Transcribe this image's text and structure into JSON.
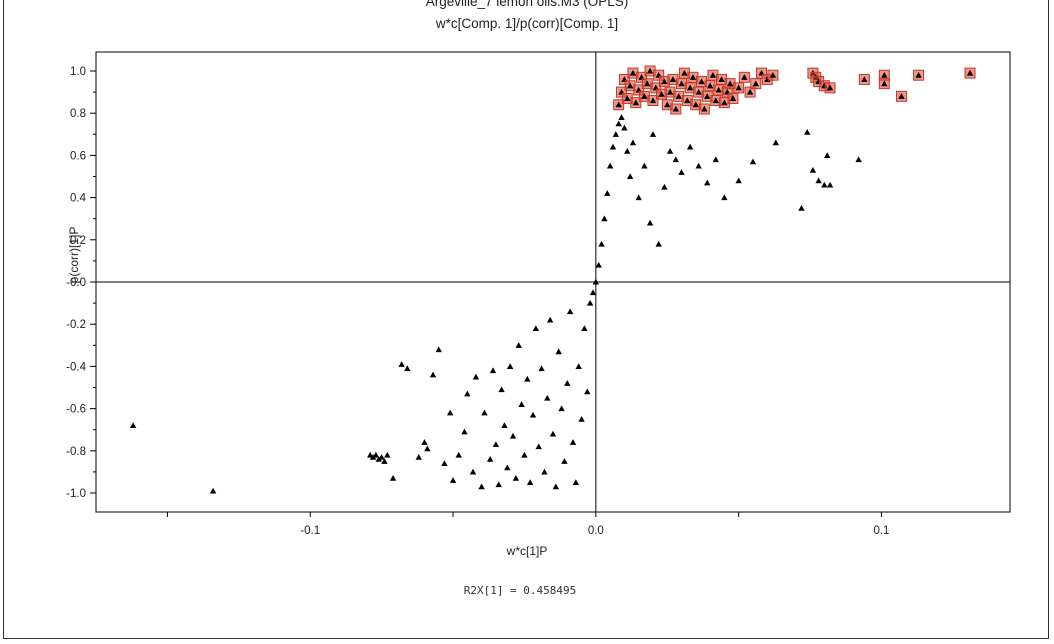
{
  "chart_data": {
    "type": "scatter",
    "title": "Argeville_7 lemon oils.M3 (OPLS)",
    "subtitle": "w*c[Comp. 1]/p(corr)[Comp. 1]",
    "xlabel": "w*c[1]P",
    "ylabel": "p(corr)[1]P",
    "xlim": [
      -0.175,
      0.145
    ],
    "ylim": [
      -1.09,
      1.09
    ],
    "x_ticks": [
      -0.1,
      0.0,
      0.1
    ],
    "x_tick_labels": [
      "-0.1",
      "0.0",
      "0.1"
    ],
    "y_ticks": [
      -1.0,
      -0.8,
      -0.6,
      -0.4,
      -0.2,
      0.0,
      0.2,
      0.4,
      0.6,
      0.8,
      1.0
    ],
    "y_tick_labels": [
      "-1.0",
      "-0.8",
      "-0.6",
      "-0.4",
      "-0.2",
      "-0.0",
      "0.2",
      "0.4",
      "0.6",
      "0.8",
      "1.0"
    ],
    "grid": true,
    "colors": {
      "points": "#000000",
      "highlight": "#e04428",
      "highlight_box": "#c0392b",
      "grid": "#e4e4e4"
    },
    "series": [
      {
        "marker": "triangle",
        "color": "#000000",
        "points": [
          [
            -0.162,
            -0.68
          ],
          [
            -0.134,
            -0.99
          ],
          [
            -0.079,
            -0.82
          ],
          [
            -0.078,
            -0.83
          ],
          [
            -0.077,
            -0.82
          ],
          [
            -0.076,
            -0.84
          ],
          [
            -0.075,
            -0.83
          ],
          [
            -0.074,
            -0.85
          ],
          [
            -0.073,
            -0.82
          ],
          [
            -0.071,
            -0.93
          ],
          [
            -0.068,
            -0.39
          ],
          [
            -0.066,
            -0.41
          ],
          [
            -0.062,
            -0.83
          ],
          [
            -0.06,
            -0.76
          ],
          [
            -0.059,
            -0.79
          ],
          [
            -0.057,
            -0.44
          ],
          [
            -0.055,
            -0.32
          ],
          [
            -0.053,
            -0.86
          ],
          [
            -0.051,
            -0.62
          ],
          [
            -0.05,
            -0.94
          ],
          [
            -0.048,
            -0.82
          ],
          [
            -0.046,
            -0.71
          ],
          [
            -0.045,
            -0.53
          ],
          [
            -0.043,
            -0.9
          ],
          [
            -0.042,
            -0.45
          ],
          [
            -0.04,
            -0.97
          ],
          [
            -0.039,
            -0.62
          ],
          [
            -0.037,
            -0.84
          ],
          [
            -0.036,
            -0.42
          ],
          [
            -0.035,
            -0.77
          ],
          [
            -0.034,
            -0.96
          ],
          [
            -0.033,
            -0.51
          ],
          [
            -0.032,
            -0.68
          ],
          [
            -0.031,
            -0.88
          ],
          [
            -0.03,
            -0.4
          ],
          [
            -0.029,
            -0.73
          ],
          [
            -0.028,
            -0.93
          ],
          [
            -0.027,
            -0.3
          ],
          [
            -0.026,
            -0.58
          ],
          [
            -0.025,
            -0.82
          ],
          [
            -0.024,
            -0.46
          ],
          [
            -0.023,
            -0.95
          ],
          [
            -0.022,
            -0.63
          ],
          [
            -0.021,
            -0.22
          ],
          [
            -0.02,
            -0.78
          ],
          [
            -0.019,
            -0.41
          ],
          [
            -0.018,
            -0.9
          ],
          [
            -0.017,
            -0.55
          ],
          [
            -0.016,
            -0.18
          ],
          [
            -0.015,
            -0.72
          ],
          [
            -0.014,
            -0.97
          ],
          [
            -0.013,
            -0.33
          ],
          [
            -0.012,
            -0.6
          ],
          [
            -0.011,
            -0.85
          ],
          [
            -0.01,
            -0.48
          ],
          [
            -0.009,
            -0.14
          ],
          [
            -0.008,
            -0.76
          ],
          [
            -0.007,
            -0.95
          ],
          [
            -0.006,
            -0.4
          ],
          [
            -0.005,
            -0.65
          ],
          [
            -0.004,
            -0.22
          ],
          [
            -0.003,
            -0.52
          ],
          [
            -0.002,
            -0.1
          ],
          [
            -0.001,
            -0.05
          ],
          [
            0.0,
            0.0
          ],
          [
            0.001,
            0.08
          ],
          [
            0.002,
            0.18
          ],
          [
            0.003,
            0.3
          ],
          [
            0.004,
            0.42
          ],
          [
            0.005,
            0.55
          ],
          [
            0.006,
            0.64
          ],
          [
            0.007,
            0.7
          ],
          [
            0.008,
            0.75
          ],
          [
            0.009,
            0.78
          ],
          [
            0.01,
            0.73
          ],
          [
            0.011,
            0.62
          ],
          [
            0.012,
            0.5
          ],
          [
            0.013,
            0.66
          ],
          [
            0.015,
            0.4
          ],
          [
            0.017,
            0.55
          ],
          [
            0.019,
            0.28
          ],
          [
            0.02,
            0.7
          ],
          [
            0.022,
            0.18
          ],
          [
            0.024,
            0.45
          ],
          [
            0.026,
            0.62
          ],
          [
            0.028,
            0.58
          ],
          [
            0.03,
            0.52
          ],
          [
            0.033,
            0.64
          ],
          [
            0.036,
            0.55
          ],
          [
            0.039,
            0.47
          ],
          [
            0.042,
            0.58
          ],
          [
            0.045,
            0.4
          ],
          [
            0.05,
            0.48
          ],
          [
            0.055,
            0.57
          ],
          [
            0.063,
            0.66
          ],
          [
            0.072,
            0.35
          ],
          [
            0.074,
            0.71
          ],
          [
            0.076,
            0.53
          ],
          [
            0.078,
            0.48
          ],
          [
            0.08,
            0.46
          ],
          [
            0.081,
            0.6
          ],
          [
            0.082,
            0.46
          ],
          [
            0.092,
            0.58
          ]
        ]
      },
      {
        "marker": "triangle-boxed",
        "color": "#e04428",
        "points": [
          [
            0.008,
            0.84
          ],
          [
            0.009,
            0.9
          ],
          [
            0.01,
            0.96
          ],
          [
            0.011,
            0.87
          ],
          [
            0.012,
            0.93
          ],
          [
            0.013,
            0.99
          ],
          [
            0.014,
            0.85
          ],
          [
            0.015,
            0.91
          ],
          [
            0.016,
            0.97
          ],
          [
            0.017,
            0.88
          ],
          [
            0.018,
            0.94
          ],
          [
            0.019,
            1.0
          ],
          [
            0.02,
            0.86
          ],
          [
            0.021,
            0.92
          ],
          [
            0.022,
            0.98
          ],
          [
            0.023,
            0.89
          ],
          [
            0.024,
            0.95
          ],
          [
            0.025,
            0.84
          ],
          [
            0.026,
            0.9
          ],
          [
            0.027,
            0.96
          ],
          [
            0.028,
            0.82
          ],
          [
            0.029,
            0.88
          ],
          [
            0.03,
            0.94
          ],
          [
            0.031,
            0.99
          ],
          [
            0.032,
            0.86
          ],
          [
            0.033,
            0.92
          ],
          [
            0.034,
            0.97
          ],
          [
            0.035,
            0.84
          ],
          [
            0.036,
            0.9
          ],
          [
            0.037,
            0.95
          ],
          [
            0.038,
            0.82
          ],
          [
            0.039,
            0.88
          ],
          [
            0.04,
            0.93
          ],
          [
            0.041,
            0.98
          ],
          [
            0.042,
            0.86
          ],
          [
            0.043,
            0.91
          ],
          [
            0.044,
            0.96
          ],
          [
            0.045,
            0.85
          ],
          [
            0.046,
            0.9
          ],
          [
            0.047,
            0.94
          ],
          [
            0.048,
            0.87
          ],
          [
            0.05,
            0.92
          ],
          [
            0.052,
            0.97
          ],
          [
            0.054,
            0.9
          ],
          [
            0.056,
            0.94
          ],
          [
            0.058,
            0.99
          ],
          [
            0.06,
            0.96
          ],
          [
            0.062,
            0.98
          ],
          [
            0.076,
            0.99
          ],
          [
            0.077,
            0.97
          ],
          [
            0.078,
            0.95
          ],
          [
            0.08,
            0.93
          ],
          [
            0.082,
            0.92
          ],
          [
            0.094,
            0.96
          ],
          [
            0.101,
            0.98
          ],
          [
            0.101,
            0.94
          ],
          [
            0.107,
            0.88
          ],
          [
            0.113,
            0.98
          ],
          [
            0.131,
            0.99
          ]
        ]
      }
    ],
    "annotation": "R2X[1] = 0.458495"
  }
}
